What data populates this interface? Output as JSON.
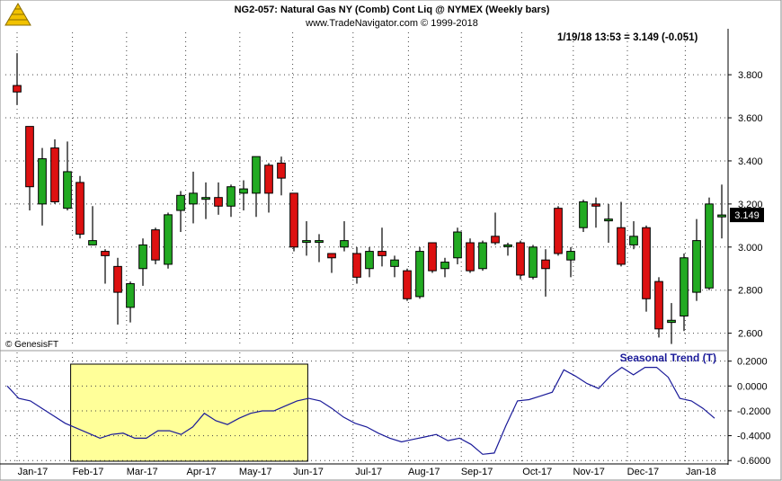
{
  "header": {
    "title": "NG2-057:  Natural Gas NY (Comb) Cont Liq @ NYMEX  (Weekly bars)",
    "subtitle": "www.TradeNavigator.com © 1999-2018",
    "quote": "1/19/18 13:53 = 3.149 (-0.051)",
    "last_price_label": "3.149",
    "watermark": "© GenesisFT"
  },
  "colors": {
    "up": "#22aa22",
    "down": "#dd1111",
    "trend_line": "#1a1a99",
    "highlight_fill": "#ffff99",
    "price_tag_bg": "#000000",
    "price_tag_fg": "#ffffff",
    "indicator_label": "#1a1a99"
  },
  "icons": {
    "logo": "pyramid-logo-icon"
  },
  "chart_data": [
    {
      "type": "candlestick",
      "name": "price",
      "ylim": [
        2.54,
        3.98
      ],
      "y_ticks": [
        2.6,
        2.8,
        3.0,
        3.2,
        3.4,
        3.6,
        3.8
      ],
      "y_tick_labels": [
        "2.600",
        "2.800",
        "3.000",
        "3.200",
        "3.400",
        "3.600",
        "3.800"
      ],
      "x_labels": [
        "Jan-17",
        "Feb-17",
        "Mar-17",
        "Apr-17",
        "May-17",
        "Jun-17",
        "Jul-17",
        "Aug-17",
        "Sep-17",
        "Oct-17",
        "Nov-17",
        "Dec-17",
        "Jan-18"
      ],
      "grid": true,
      "last_price": 3.149,
      "bars": [
        {
          "o": 3.75,
          "h": 3.9,
          "l": 3.66,
          "c": 3.72
        },
        {
          "o": 3.56,
          "h": 3.56,
          "l": 3.17,
          "c": 3.28
        },
        {
          "o": 3.2,
          "h": 3.46,
          "l": 3.1,
          "c": 3.41
        },
        {
          "o": 3.46,
          "h": 3.5,
          "l": 3.2,
          "c": 3.21
        },
        {
          "o": 3.18,
          "h": 3.49,
          "l": 3.17,
          "c": 3.35
        },
        {
          "o": 3.3,
          "h": 3.33,
          "l": 3.04,
          "c": 3.06
        },
        {
          "o": 3.01,
          "h": 3.19,
          "l": 3.01,
          "c": 3.03
        },
        {
          "o": 2.98,
          "h": 2.99,
          "l": 2.83,
          "c": 2.96
        },
        {
          "o": 2.91,
          "h": 2.95,
          "l": 2.64,
          "c": 2.79
        },
        {
          "o": 2.72,
          "h": 2.84,
          "l": 2.65,
          "c": 2.83
        },
        {
          "o": 2.9,
          "h": 3.04,
          "l": 2.82,
          "c": 3.01
        },
        {
          "o": 3.08,
          "h": 3.09,
          "l": 2.92,
          "c": 2.94
        },
        {
          "o": 2.92,
          "h": 3.16,
          "l": 2.9,
          "c": 3.15
        },
        {
          "o": 3.17,
          "h": 3.26,
          "l": 3.07,
          "c": 3.24
        },
        {
          "o": 3.2,
          "h": 3.35,
          "l": 3.11,
          "c": 3.25
        },
        {
          "o": 3.23,
          "h": 3.3,
          "l": 3.13,
          "c": 3.23
        },
        {
          "o": 3.23,
          "h": 3.3,
          "l": 3.15,
          "c": 3.19
        },
        {
          "o": 3.19,
          "h": 3.29,
          "l": 3.14,
          "c": 3.28
        },
        {
          "o": 3.25,
          "h": 3.31,
          "l": 3.17,
          "c": 3.27
        },
        {
          "o": 3.25,
          "h": 3.42,
          "l": 3.14,
          "c": 3.42
        },
        {
          "o": 3.38,
          "h": 3.39,
          "l": 3.16,
          "c": 3.25
        },
        {
          "o": 3.39,
          "h": 3.42,
          "l": 3.24,
          "c": 3.32
        },
        {
          "o": 3.25,
          "h": 3.25,
          "l": 2.98,
          "c": 3.0
        },
        {
          "o": 3.03,
          "h": 3.12,
          "l": 2.96,
          "c": 3.03
        },
        {
          "o": 3.03,
          "h": 3.06,
          "l": 2.93,
          "c": 3.03
        },
        {
          "o": 2.97,
          "h": 2.97,
          "l": 2.88,
          "c": 2.95
        },
        {
          "o": 3.0,
          "h": 3.12,
          "l": 2.98,
          "c": 3.03
        },
        {
          "o": 2.97,
          "h": 3.0,
          "l": 2.83,
          "c": 2.86
        },
        {
          "o": 2.9,
          "h": 3.0,
          "l": 2.86,
          "c": 2.98
        },
        {
          "o": 2.98,
          "h": 3.09,
          "l": 2.91,
          "c": 2.96
        },
        {
          "o": 2.91,
          "h": 2.96,
          "l": 2.86,
          "c": 2.94
        },
        {
          "o": 2.89,
          "h": 2.9,
          "l": 2.75,
          "c": 2.76
        },
        {
          "o": 2.77,
          "h": 3.0,
          "l": 2.76,
          "c": 2.98
        },
        {
          "o": 3.02,
          "h": 3.02,
          "l": 2.88,
          "c": 2.89
        },
        {
          "o": 2.9,
          "h": 2.95,
          "l": 2.86,
          "c": 2.93
        },
        {
          "o": 2.95,
          "h": 3.09,
          "l": 2.92,
          "c": 3.07
        },
        {
          "o": 3.02,
          "h": 3.04,
          "l": 2.88,
          "c": 2.89
        },
        {
          "o": 2.9,
          "h": 3.03,
          "l": 2.89,
          "c": 3.02
        },
        {
          "o": 3.05,
          "h": 3.16,
          "l": 3.01,
          "c": 3.02
        },
        {
          "o": 3.01,
          "h": 3.02,
          "l": 2.96,
          "c": 3.01
        },
        {
          "o": 3.02,
          "h": 3.03,
          "l": 2.85,
          "c": 2.87
        },
        {
          "o": 2.86,
          "h": 3.01,
          "l": 2.85,
          "c": 3.0
        },
        {
          "o": 2.94,
          "h": 2.99,
          "l": 2.77,
          "c": 2.9
        },
        {
          "o": 3.18,
          "h": 3.19,
          "l": 2.96,
          "c": 2.97
        },
        {
          "o": 2.94,
          "h": 3.0,
          "l": 2.86,
          "c": 2.98
        },
        {
          "o": 3.09,
          "h": 3.22,
          "l": 3.07,
          "c": 3.21
        },
        {
          "o": 3.2,
          "h": 3.23,
          "l": 3.09,
          "c": 3.19
        },
        {
          "o": 3.13,
          "h": 3.2,
          "l": 3.02,
          "c": 3.13
        },
        {
          "o": 3.09,
          "h": 3.21,
          "l": 2.91,
          "c": 2.92
        },
        {
          "o": 3.01,
          "h": 3.12,
          "l": 2.99,
          "c": 3.05
        },
        {
          "o": 3.09,
          "h": 3.1,
          "l": 2.7,
          "c": 2.76
        },
        {
          "o": 2.84,
          "h": 2.86,
          "l": 2.58,
          "c": 2.62
        },
        {
          "o": 2.65,
          "h": 2.74,
          "l": 2.55,
          "c": 2.66
        },
        {
          "o": 2.68,
          "h": 2.97,
          "l": 2.61,
          "c": 2.95
        },
        {
          "o": 2.79,
          "h": 3.13,
          "l": 2.75,
          "c": 3.03
        },
        {
          "o": 2.81,
          "h": 3.23,
          "l": 2.8,
          "c": 3.2
        },
        {
          "o": 3.14,
          "h": 3.29,
          "l": 3.04,
          "c": 3.149
        }
      ]
    },
    {
      "type": "line",
      "name": "Seasonal Trend (T)",
      "ylim": [
        -0.62,
        0.27
      ],
      "y_ticks": [
        -0.6,
        -0.4,
        -0.2,
        0.0,
        0.2
      ],
      "y_tick_labels": [
        "-0.6000",
        "-0.4000",
        "-0.2000",
        "0.0000",
        "0.2000"
      ],
      "highlight": {
        "from_label": "Feb-17",
        "to_label": "Jun-17"
      },
      "values": [
        0.0,
        -0.1,
        -0.12,
        -0.18,
        -0.24,
        -0.3,
        -0.34,
        -0.38,
        -0.42,
        -0.39,
        -0.38,
        -0.42,
        -0.42,
        -0.36,
        -0.36,
        -0.39,
        -0.33,
        -0.22,
        -0.28,
        -0.31,
        -0.26,
        -0.22,
        -0.2,
        -0.2,
        -0.16,
        -0.12,
        -0.1,
        -0.12,
        -0.18,
        -0.25,
        -0.3,
        -0.33,
        -0.38,
        -0.42,
        -0.45,
        -0.43,
        -0.41,
        -0.39,
        -0.44,
        -0.42,
        -0.47,
        -0.55,
        -0.54,
        -0.32,
        -0.12,
        -0.11,
        -0.08,
        -0.05,
        0.13,
        0.08,
        0.02,
        -0.02,
        0.08,
        0.15,
        0.09,
        0.15,
        0.15,
        0.07,
        -0.1,
        -0.12,
        -0.18,
        -0.26
      ]
    }
  ]
}
